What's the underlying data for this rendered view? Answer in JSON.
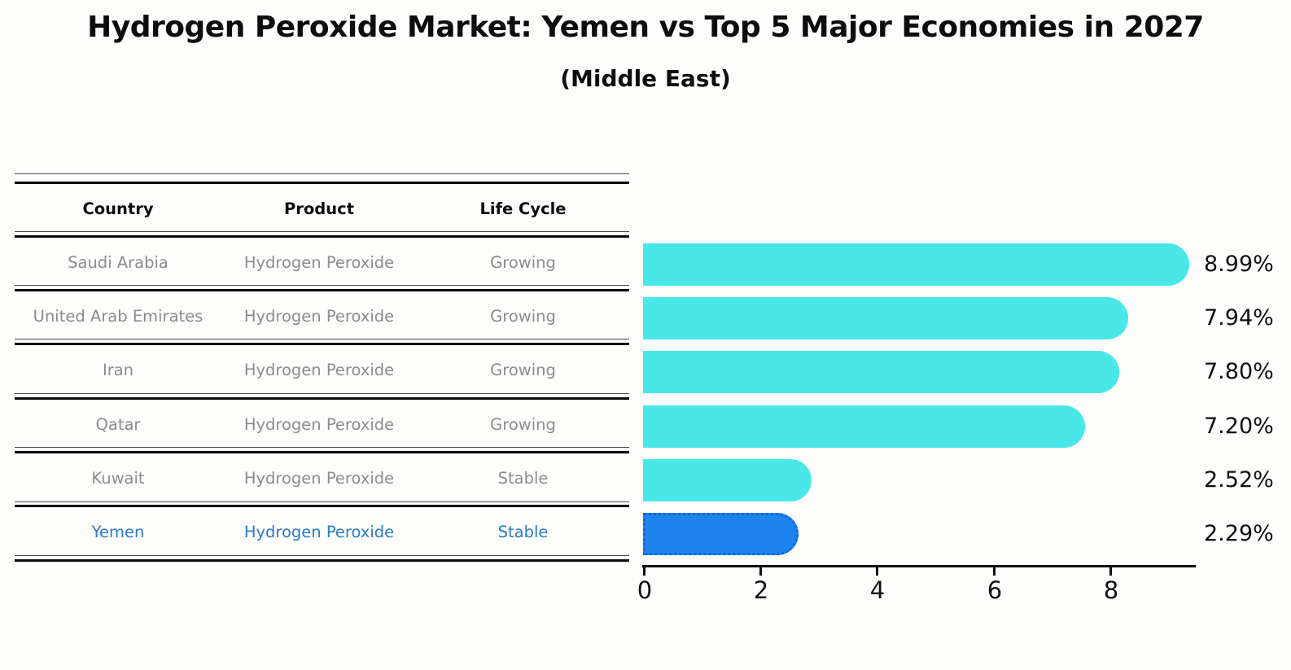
{
  "title": "Hydrogen Peroxide Market: Yemen vs Top 5 Major Economies in 2027",
  "subtitle": "(Middle East)",
  "table": {
    "headers": [
      "Country",
      "Product",
      "Life Cycle"
    ],
    "rows": [
      {
        "country": "Saudi Arabia",
        "product": "Hydrogen Peroxide",
        "life_cycle": "Growing",
        "highlighted": false
      },
      {
        "country": "United Arab Emirates",
        "product": "Hydrogen Peroxide",
        "life_cycle": "Growing",
        "highlighted": false
      },
      {
        "country": "Iran",
        "product": "Hydrogen Peroxide",
        "life_cycle": "Growing",
        "highlighted": false
      },
      {
        "country": "Qatar",
        "product": "Hydrogen Peroxide",
        "life_cycle": "Growing",
        "highlighted": false
      },
      {
        "country": "Kuwait",
        "product": "Hydrogen Peroxide",
        "life_cycle": "Stable",
        "highlighted": false
      },
      {
        "country": "Yemen",
        "product": "Hydrogen Peroxide",
        "life_cycle": "Stable",
        "highlighted": true
      }
    ]
  },
  "chart_data": {
    "type": "bar",
    "orientation": "horizontal",
    "title": "Hydrogen Peroxide Market: Yemen vs Top 5 Major Economies in 2027",
    "subtitle": "(Middle East)",
    "categories": [
      "Saudi Arabia",
      "United Arab Emirates",
      "Iran",
      "Qatar",
      "Kuwait",
      "Yemen"
    ],
    "values": [
      8.99,
      7.94,
      7.8,
      7.2,
      2.52,
      2.29
    ],
    "value_labels": [
      "8.99%",
      "7.94%",
      "7.80%",
      "7.20%",
      "2.52%",
      "2.29%"
    ],
    "xlim": [
      0,
      9.5
    ],
    "xticks": [
      0,
      2,
      4,
      6,
      8
    ],
    "xtick_labels": [
      "0",
      "2",
      "4",
      "6",
      "8"
    ],
    "grid": false,
    "legend": "none",
    "highlight_index": 5,
    "bar_color": "#49e7e8",
    "highlight_bar_color": "#1e85f0",
    "highlight_border_color": "#1266d6",
    "highlight_text_color": "#2b7ac7"
  }
}
